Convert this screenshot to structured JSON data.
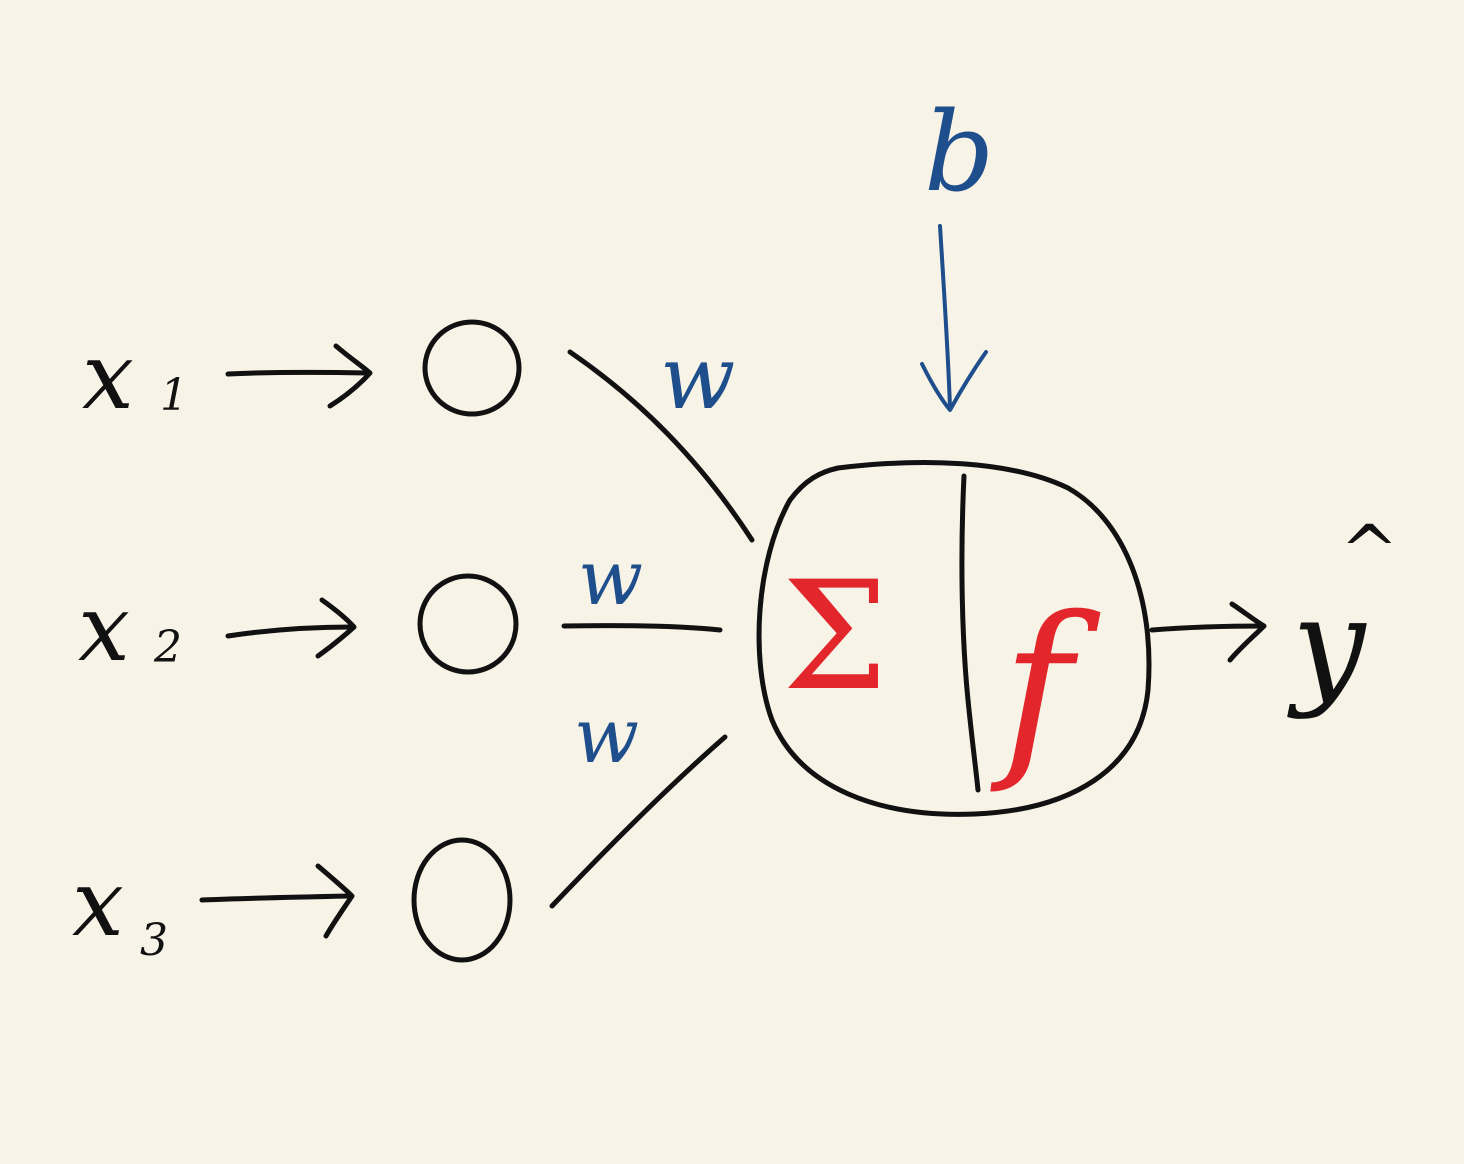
{
  "colors": {
    "background": "#f7f3e7",
    "ink": "#111111",
    "weight_ink": "#1e4f8c",
    "neuron_ink": "#e3262b"
  },
  "inputs": [
    {
      "symbol": "x",
      "subscript": "1"
    },
    {
      "symbol": "x",
      "subscript": "2"
    },
    {
      "symbol": "x",
      "subscript": "3"
    }
  ],
  "weights": [
    "w",
    "w",
    "w"
  ],
  "bias": "b",
  "neuron": {
    "sum_symbol": "Σ",
    "activation_symbol": "f"
  },
  "output": {
    "symbol": "y",
    "hat": "^"
  }
}
